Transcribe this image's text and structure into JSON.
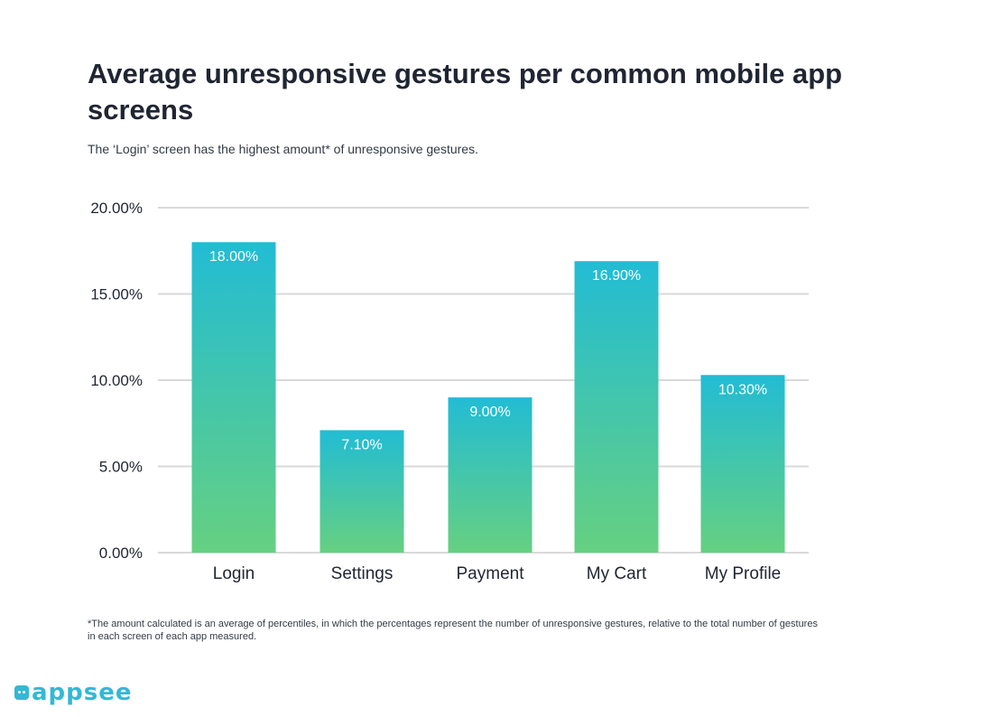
{
  "title": "Average unresponsive gestures per common mobile app screens",
  "subtitle": "The ‘Login’ screen has the highest amount* of unresponsive gestures.",
  "footnote": "*The amount calculated is an average of percentiles, in which the percentages represent the number of unresponsive gestures, relative to the total number of gestures in each screen of each app measured.",
  "logo": {
    "text": "appsee",
    "icon": "appsee-logo-icon",
    "color": "#33b8d6"
  },
  "colors": {
    "bar_top": "#22bcd4",
    "bar_bottom": "#66d081",
    "grid": "#d9d9d9",
    "text": "#1f2532",
    "label": "#ffffff"
  },
  "chart_data": {
    "type": "bar",
    "categories": [
      "Login",
      "Settings",
      "Payment",
      "My Cart",
      "My Profile"
    ],
    "values": [
      18.0,
      7.1,
      9.0,
      16.9,
      10.3
    ],
    "data_labels": [
      "18.00%",
      "7.10%",
      "9.00%",
      "16.90%",
      "10.30%"
    ],
    "yticks": [
      0,
      5,
      10,
      15,
      20
    ],
    "ytick_labels": [
      "0.00%",
      "5.00%",
      "10.00%",
      "15.00%",
      "20.00%"
    ],
    "ylim": [
      0,
      20
    ],
    "grid": true,
    "legend": false
  }
}
